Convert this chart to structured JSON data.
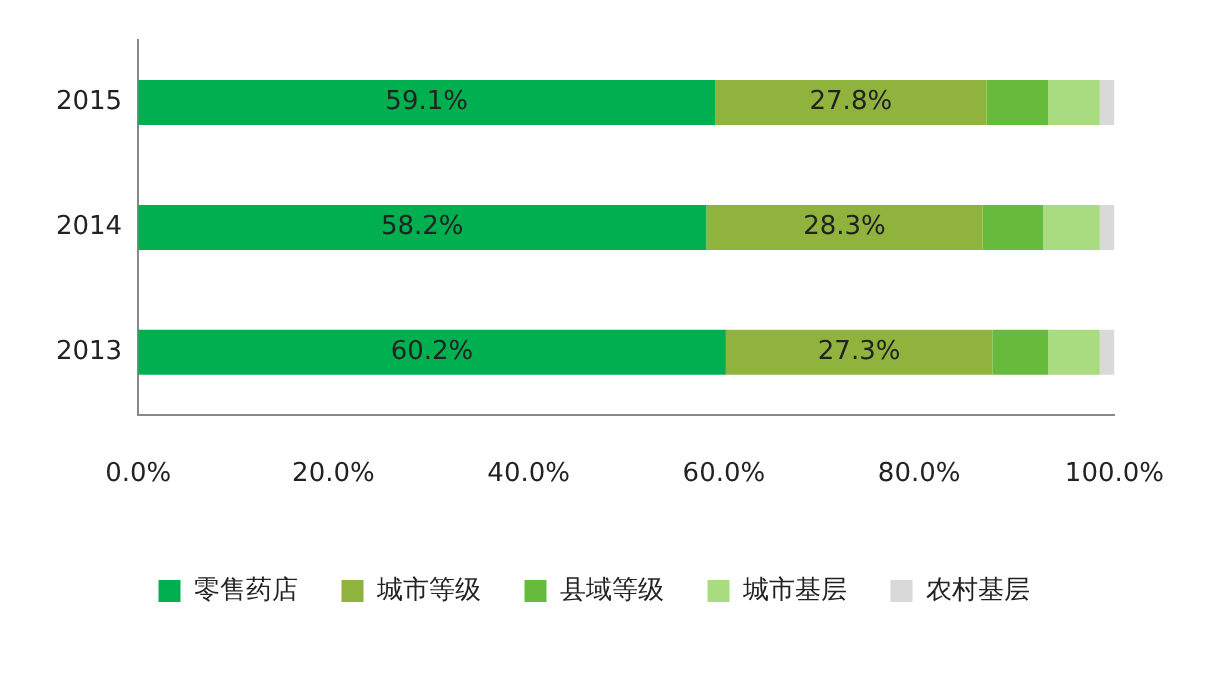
{
  "chart_data": {
    "type": "bar",
    "orientation": "horizontal",
    "stacked": true,
    "categories": [
      "2015",
      "2014",
      "2013"
    ],
    "series": [
      {
        "name": "零售药店",
        "color": "#00b050",
        "values": [
          59.1,
          58.2,
          60.2
        ],
        "value_labels": [
          "59.1%",
          "58.2%",
          "60.2%"
        ]
      },
      {
        "name": "城市等级",
        "color": "#8fb33c",
        "values": [
          27.8,
          28.3,
          27.3
        ],
        "value_labels": [
          "27.8%",
          "28.3%",
          "27.3%"
        ]
      },
      {
        "name": "县域等级",
        "color": "#66bb3c",
        "values": [
          6.3,
          6.2,
          5.7
        ]
      },
      {
        "name": "城市基层",
        "color": "#a9dc80",
        "values": [
          5.3,
          5.8,
          5.3
        ]
      },
      {
        "name": "农村基层",
        "color": "#d9d9d9",
        "values": [
          1.5,
          1.5,
          1.5
        ]
      }
    ],
    "xlim": [
      0,
      100
    ],
    "xticks": [
      {
        "value": 0,
        "label": "0.0%"
      },
      {
        "value": 20,
        "label": "20.0%"
      },
      {
        "value": 40,
        "label": "40.0%"
      },
      {
        "value": 60,
        "label": "60.0%"
      },
      {
        "value": 80,
        "label": "80.0%"
      },
      {
        "value": 100,
        "label": "100.0%"
      }
    ],
    "grid": false,
    "legend": "bottom"
  }
}
